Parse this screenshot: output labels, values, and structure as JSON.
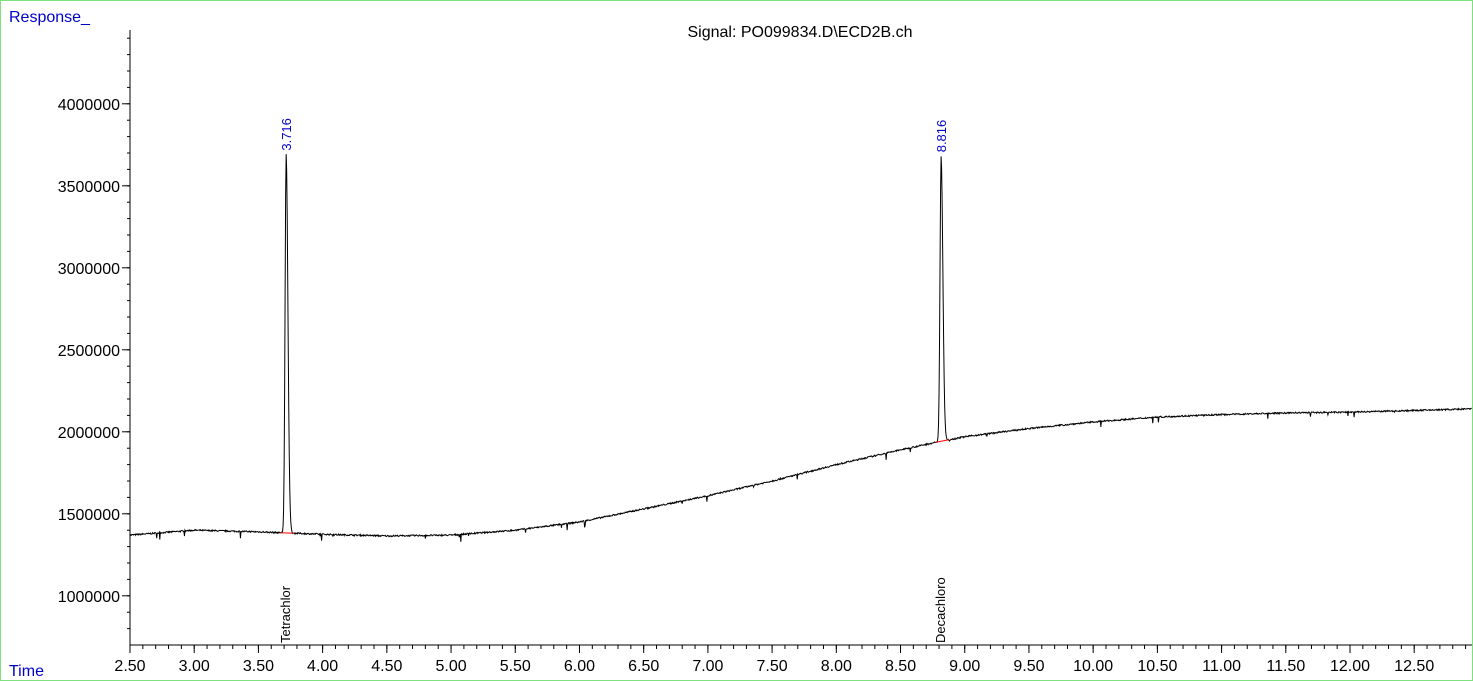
{
  "chart_data": {
    "type": "line",
    "title": "Signal: PO099834.D\\ECD2B.ch",
    "ylabel": "Response_",
    "xlabel": "Time",
    "xlim": [
      2.5,
      12.95
    ],
    "ylim": [
      700000,
      4450000
    ],
    "x_ticks": [
      "2.50",
      "3.00",
      "3.50",
      "4.00",
      "4.50",
      "5.00",
      "5.50",
      "6.00",
      "6.50",
      "7.00",
      "7.50",
      "8.00",
      "8.50",
      "9.00",
      "9.50",
      "10.00",
      "10.50",
      "11.00",
      "11.50",
      "12.00",
      "12.50"
    ],
    "y_ticks": [
      "1000000",
      "1500000",
      "2000000",
      "2500000",
      "3000000",
      "3500000",
      "4000000"
    ],
    "baseline": {
      "x": [
        2.5,
        3.0,
        3.5,
        4.0,
        4.5,
        5.0,
        5.5,
        6.0,
        6.5,
        7.0,
        7.5,
        8.0,
        8.5,
        8.8,
        9.0,
        9.5,
        10.0,
        10.5,
        11.0,
        11.5,
        12.0,
        12.5,
        12.95
      ],
      "y": [
        1370000,
        1400000,
        1390000,
        1375000,
        1365000,
        1370000,
        1400000,
        1450000,
        1530000,
        1610000,
        1700000,
        1800000,
        1890000,
        1940000,
        1970000,
        2020000,
        2060000,
        2090000,
        2105000,
        2115000,
        2120000,
        2130000,
        2140000
      ]
    },
    "peaks": [
      {
        "rt": "3.716",
        "x": 3.716,
        "apex": 3690000,
        "base": 1385000,
        "compound": "Tetrachlor"
      },
      {
        "rt": "8.816",
        "x": 8.816,
        "apex": 3680000,
        "base": 1935000,
        "compound": "Decachloro"
      }
    ],
    "colors": {
      "frame": "#7fe07f",
      "axis_label": "#0000cc",
      "peak_label": "#0000cc",
      "trace": "#000000",
      "baseline_fit": "#ff0000"
    }
  }
}
